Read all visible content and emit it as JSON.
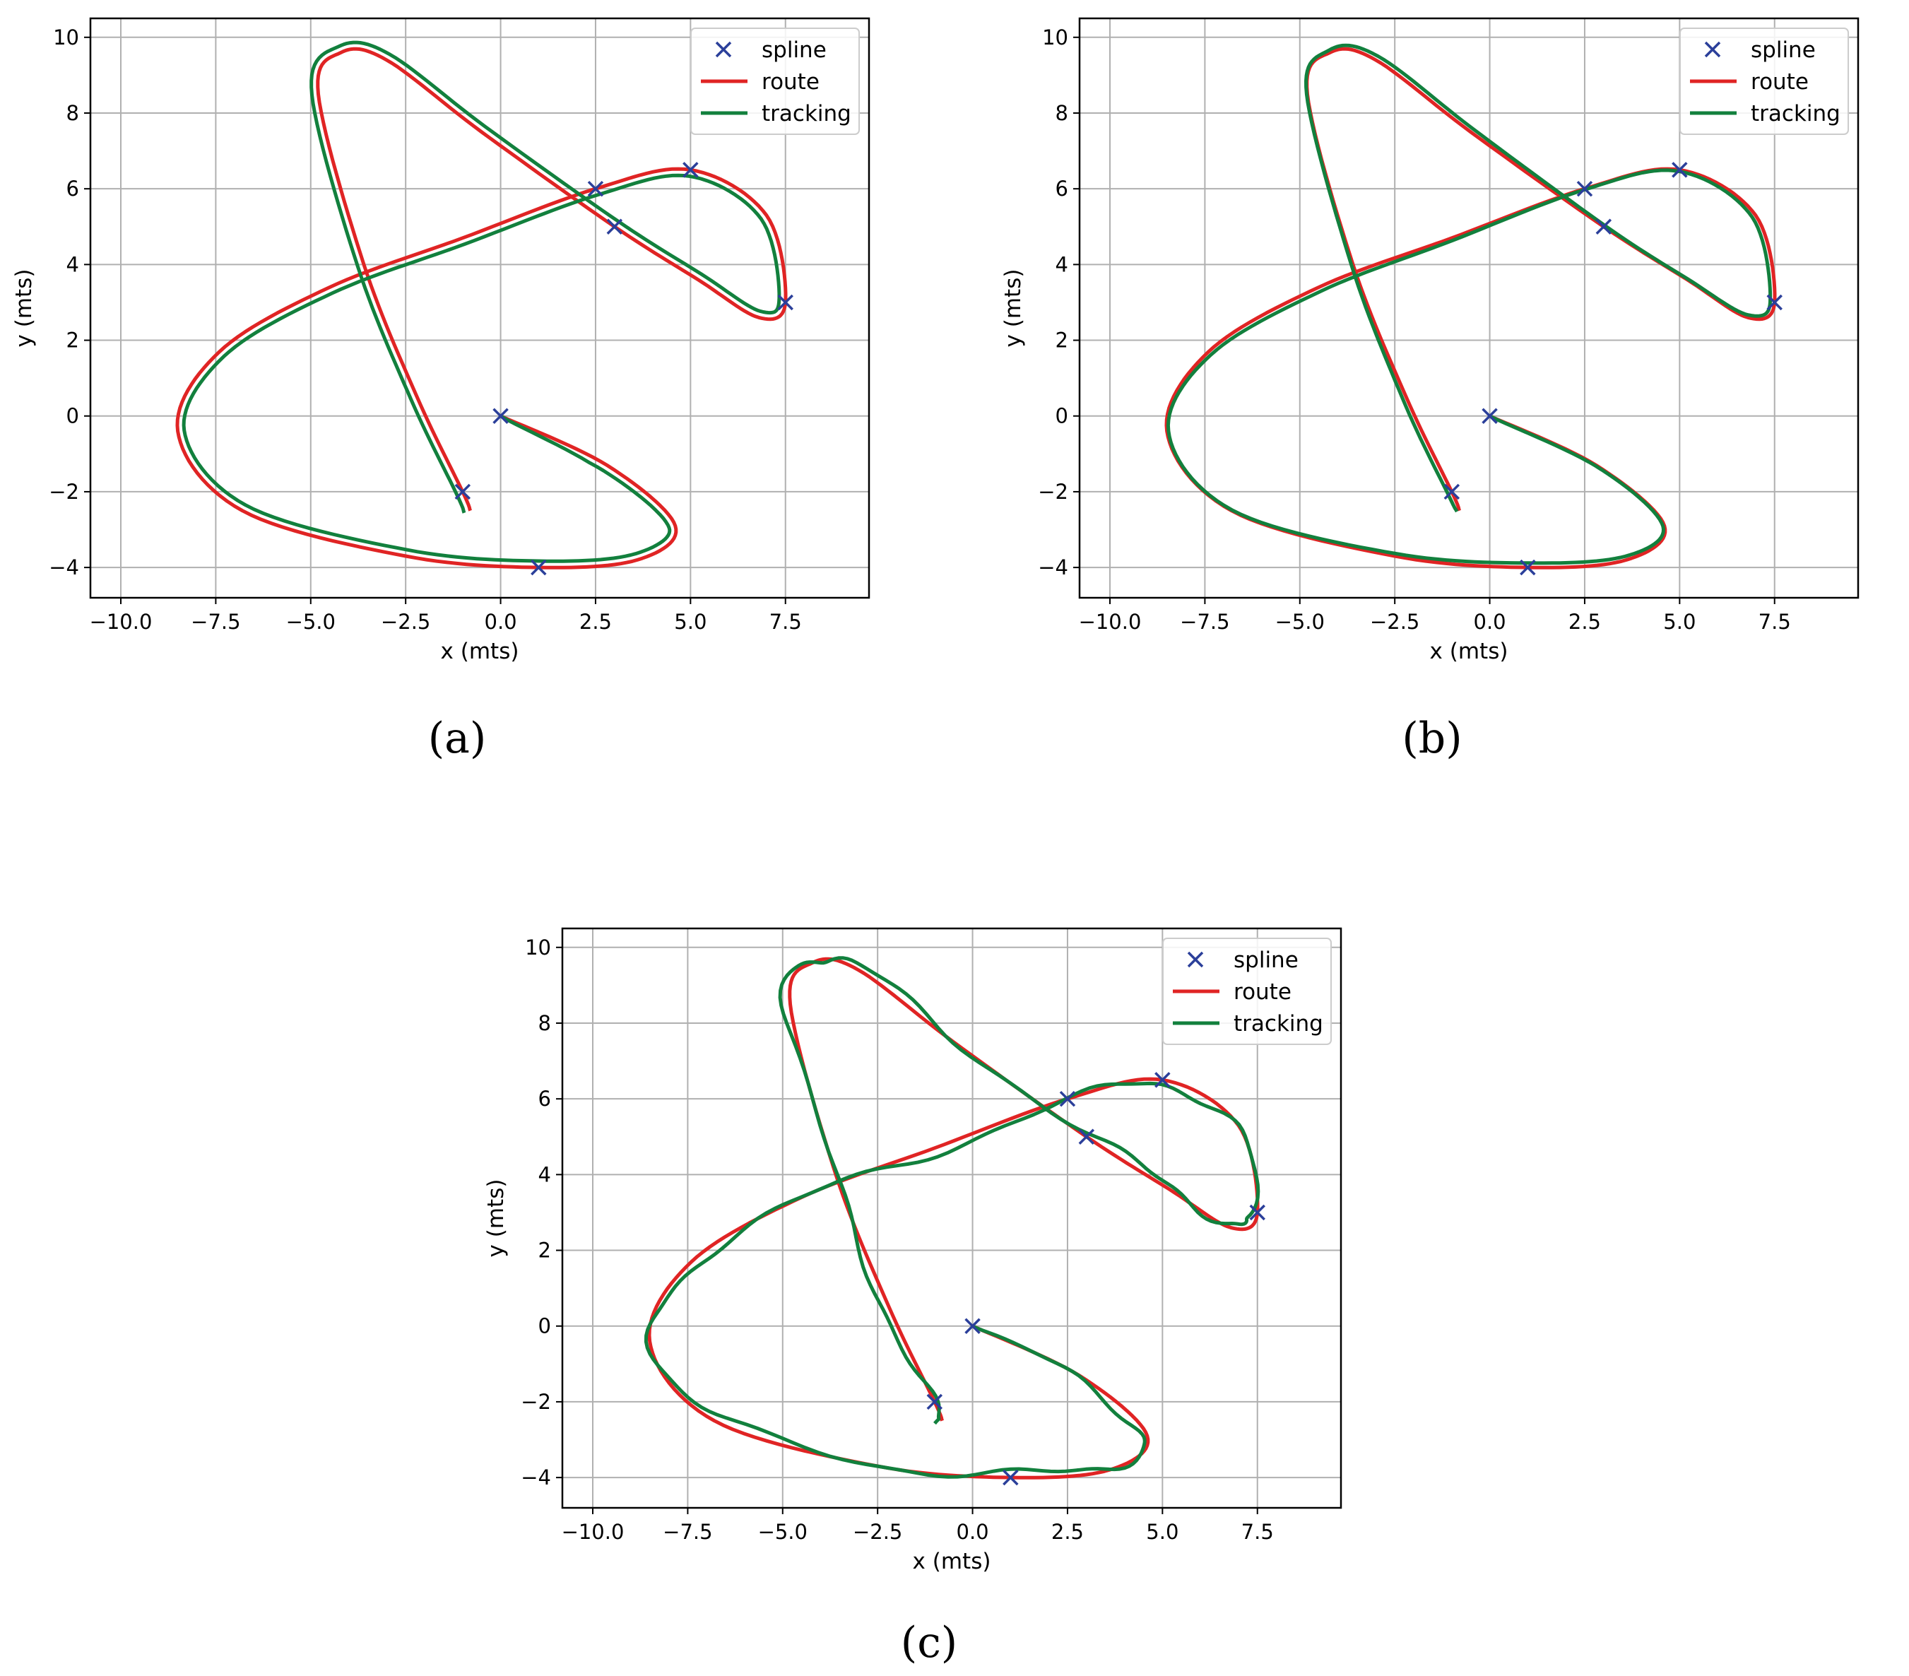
{
  "colors": {
    "spline": "#2b3f9a",
    "route": "#e02424",
    "tracking": "#12803d",
    "grid": "#b0b0b0"
  },
  "chart_data": [
    {
      "type": "line",
      "caption": "(a)",
      "xlabel": "x (mts)",
      "ylabel": "y (mts)",
      "xlim": [
        -10.8,
        9.7
      ],
      "ylim": [
        -4.8,
        10.5
      ],
      "xticks": [
        -10.0,
        -7.5,
        -5.0,
        -2.5,
        0.0,
        2.5,
        5.0,
        7.5
      ],
      "yticks": [
        -4,
        -2,
        0,
        2,
        4,
        6,
        8,
        10
      ],
      "xtick_labels": [
        "−10.0",
        "−7.5",
        "−5.0",
        "−2.5",
        "0.0",
        "2.5",
        "5.0",
        "7.5"
      ],
      "ytick_labels": [
        "−4",
        "−2",
        "0",
        "2",
        "4",
        "6",
        "8",
        "10"
      ],
      "grid": true,
      "legend": {
        "placement": "top-right",
        "entries": [
          "spline",
          "route",
          "tracking"
        ]
      },
      "tracking_style": "offset",
      "series": [
        {
          "name": "spline",
          "marker": "x",
          "x": [
            0,
            1,
            2.5,
            5,
            7.5,
            3,
            -1
          ],
          "y": [
            0,
            -4,
            6,
            6.5,
            3,
            5,
            -2
          ]
        },
        {
          "name": "route",
          "x": [],
          "y": []
        },
        {
          "name": "tracking",
          "x": [],
          "y": []
        }
      ]
    },
    {
      "type": "line",
      "caption": "(b)",
      "xlabel": "x (mts)",
      "ylabel": "y (mts)",
      "xlim": [
        -10.8,
        9.7
      ],
      "ylim": [
        -4.8,
        10.5
      ],
      "xticks": [
        -10.0,
        -7.5,
        -5.0,
        -2.5,
        0.0,
        2.5,
        5.0,
        7.5
      ],
      "yticks": [
        -4,
        -2,
        0,
        2,
        4,
        6,
        8,
        10
      ],
      "xtick_labels": [
        "−10.0",
        "−7.5",
        "−5.0",
        "−2.5",
        "0.0",
        "2.5",
        "5.0",
        "7.5"
      ],
      "ytick_labels": [
        "−4",
        "−2",
        "0",
        "2",
        "4",
        "6",
        "8",
        "10"
      ],
      "grid": true,
      "legend": {
        "placement": "top-right",
        "entries": [
          "spline",
          "route",
          "tracking"
        ]
      },
      "tracking_style": "close",
      "series": [
        {
          "name": "spline",
          "marker": "x",
          "x": [
            0,
            1,
            2.5,
            5,
            7.5,
            3,
            -1
          ],
          "y": [
            0,
            -4,
            6,
            6.5,
            3,
            5,
            -2
          ]
        },
        {
          "name": "route",
          "x": [],
          "y": []
        },
        {
          "name": "tracking",
          "x": [],
          "y": []
        }
      ]
    },
    {
      "type": "line",
      "caption": "(c)",
      "xlabel": "x (mts)",
      "ylabel": "y (mts)",
      "xlim": [
        -10.8,
        9.7
      ],
      "ylim": [
        -4.8,
        10.5
      ],
      "xticks": [
        -10.0,
        -7.5,
        -5.0,
        -2.5,
        0.0,
        2.5,
        5.0,
        7.5
      ],
      "yticks": [
        -4,
        -2,
        0,
        2,
        4,
        6,
        8,
        10
      ],
      "xtick_labels": [
        "−10.0",
        "−7.5",
        "−5.0",
        "−2.5",
        "0.0",
        "2.5",
        "5.0",
        "7.5"
      ],
      "ytick_labels": [
        "−4",
        "−2",
        "0",
        "2",
        "4",
        "6",
        "8",
        "10"
      ],
      "grid": true,
      "legend": {
        "placement": "top-right",
        "entries": [
          "spline",
          "route",
          "tracking"
        ]
      },
      "tracking_style": "wavy",
      "series": [
        {
          "name": "spline",
          "marker": "x",
          "x": [
            0,
            1,
            2.5,
            5,
            7.5,
            3,
            -1
          ],
          "y": [
            0,
            -4,
            6,
            6.5,
            3,
            5,
            -2
          ]
        },
        {
          "name": "route",
          "x": [],
          "y": []
        },
        {
          "name": "tracking",
          "x": [],
          "y": []
        }
      ]
    }
  ]
}
